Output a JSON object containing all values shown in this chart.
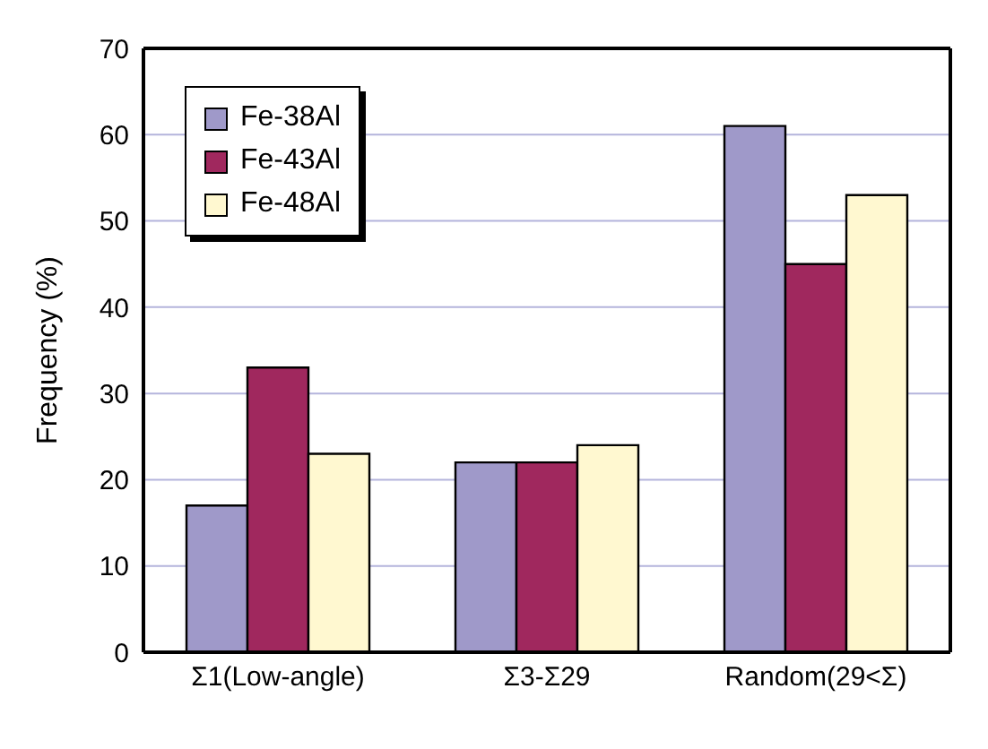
{
  "chart_data": {
    "type": "bar",
    "ylabel": "Frequency (%)",
    "categories": [
      "Σ1(Low-angle)",
      "Σ3-Σ29",
      "Random(29<Σ)"
    ],
    "series": [
      {
        "name": "Fe-38Al",
        "color": "#9f99c9",
        "values": [
          17,
          22,
          61
        ]
      },
      {
        "name": "Fe-43Al",
        "color": "#a0285e",
        "values": [
          33,
          22,
          45
        ]
      },
      {
        "name": "Fe-48Al",
        "color": "#fff8d0",
        "values": [
          23,
          24,
          53
        ]
      }
    ],
    "ylim": [
      0,
      70
    ],
    "yticks": [
      0,
      10,
      20,
      30,
      40,
      50,
      60,
      70
    ],
    "grid": "y",
    "legend": "top left"
  }
}
